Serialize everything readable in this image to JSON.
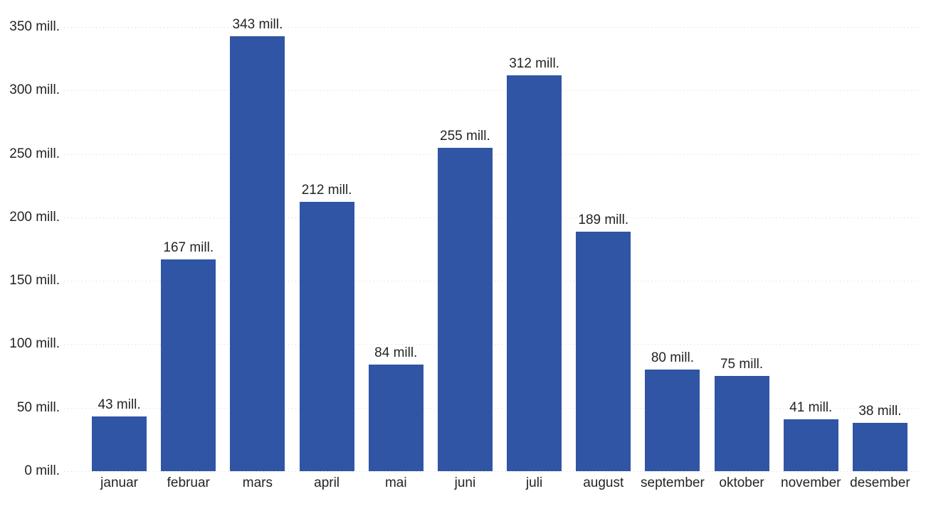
{
  "chart_data": {
    "type": "bar",
    "title": "",
    "xlabel": "",
    "ylabel": "",
    "categories": [
      "januar",
      "februar",
      "mars",
      "april",
      "mai",
      "juni",
      "juli",
      "august",
      "september",
      "oktober",
      "november",
      "desember"
    ],
    "values": [
      43,
      167,
      343,
      212,
      84,
      255,
      312,
      189,
      80,
      75,
      41,
      38
    ],
    "bar_labels": [
      "43 mill.",
      "167 mill.",
      "343 mill.",
      "212 mill.",
      "84 mill.",
      "255 mill.",
      "312 mill.",
      "189 mill.",
      "80 mill.",
      "75 mill.",
      "41 mill.",
      "38 mill."
    ],
    "value_suffix": "mill.",
    "y_ticks": [
      0,
      50,
      100,
      150,
      200,
      250,
      300,
      350
    ],
    "y_tick_labels": [
      "0 mill.",
      "50 mill.",
      "100 mill.",
      "150 mill.",
      "200 mill.",
      "250 mill.",
      "300 mill.",
      "350 mill."
    ],
    "ylim": [
      0,
      350
    ],
    "grid": "horizontal-dotted",
    "legend": "none",
    "colors": {
      "bar": "#3055A4",
      "label": "#252423",
      "gridline": "#D6D6D6",
      "background": "#FFFFFF"
    }
  }
}
